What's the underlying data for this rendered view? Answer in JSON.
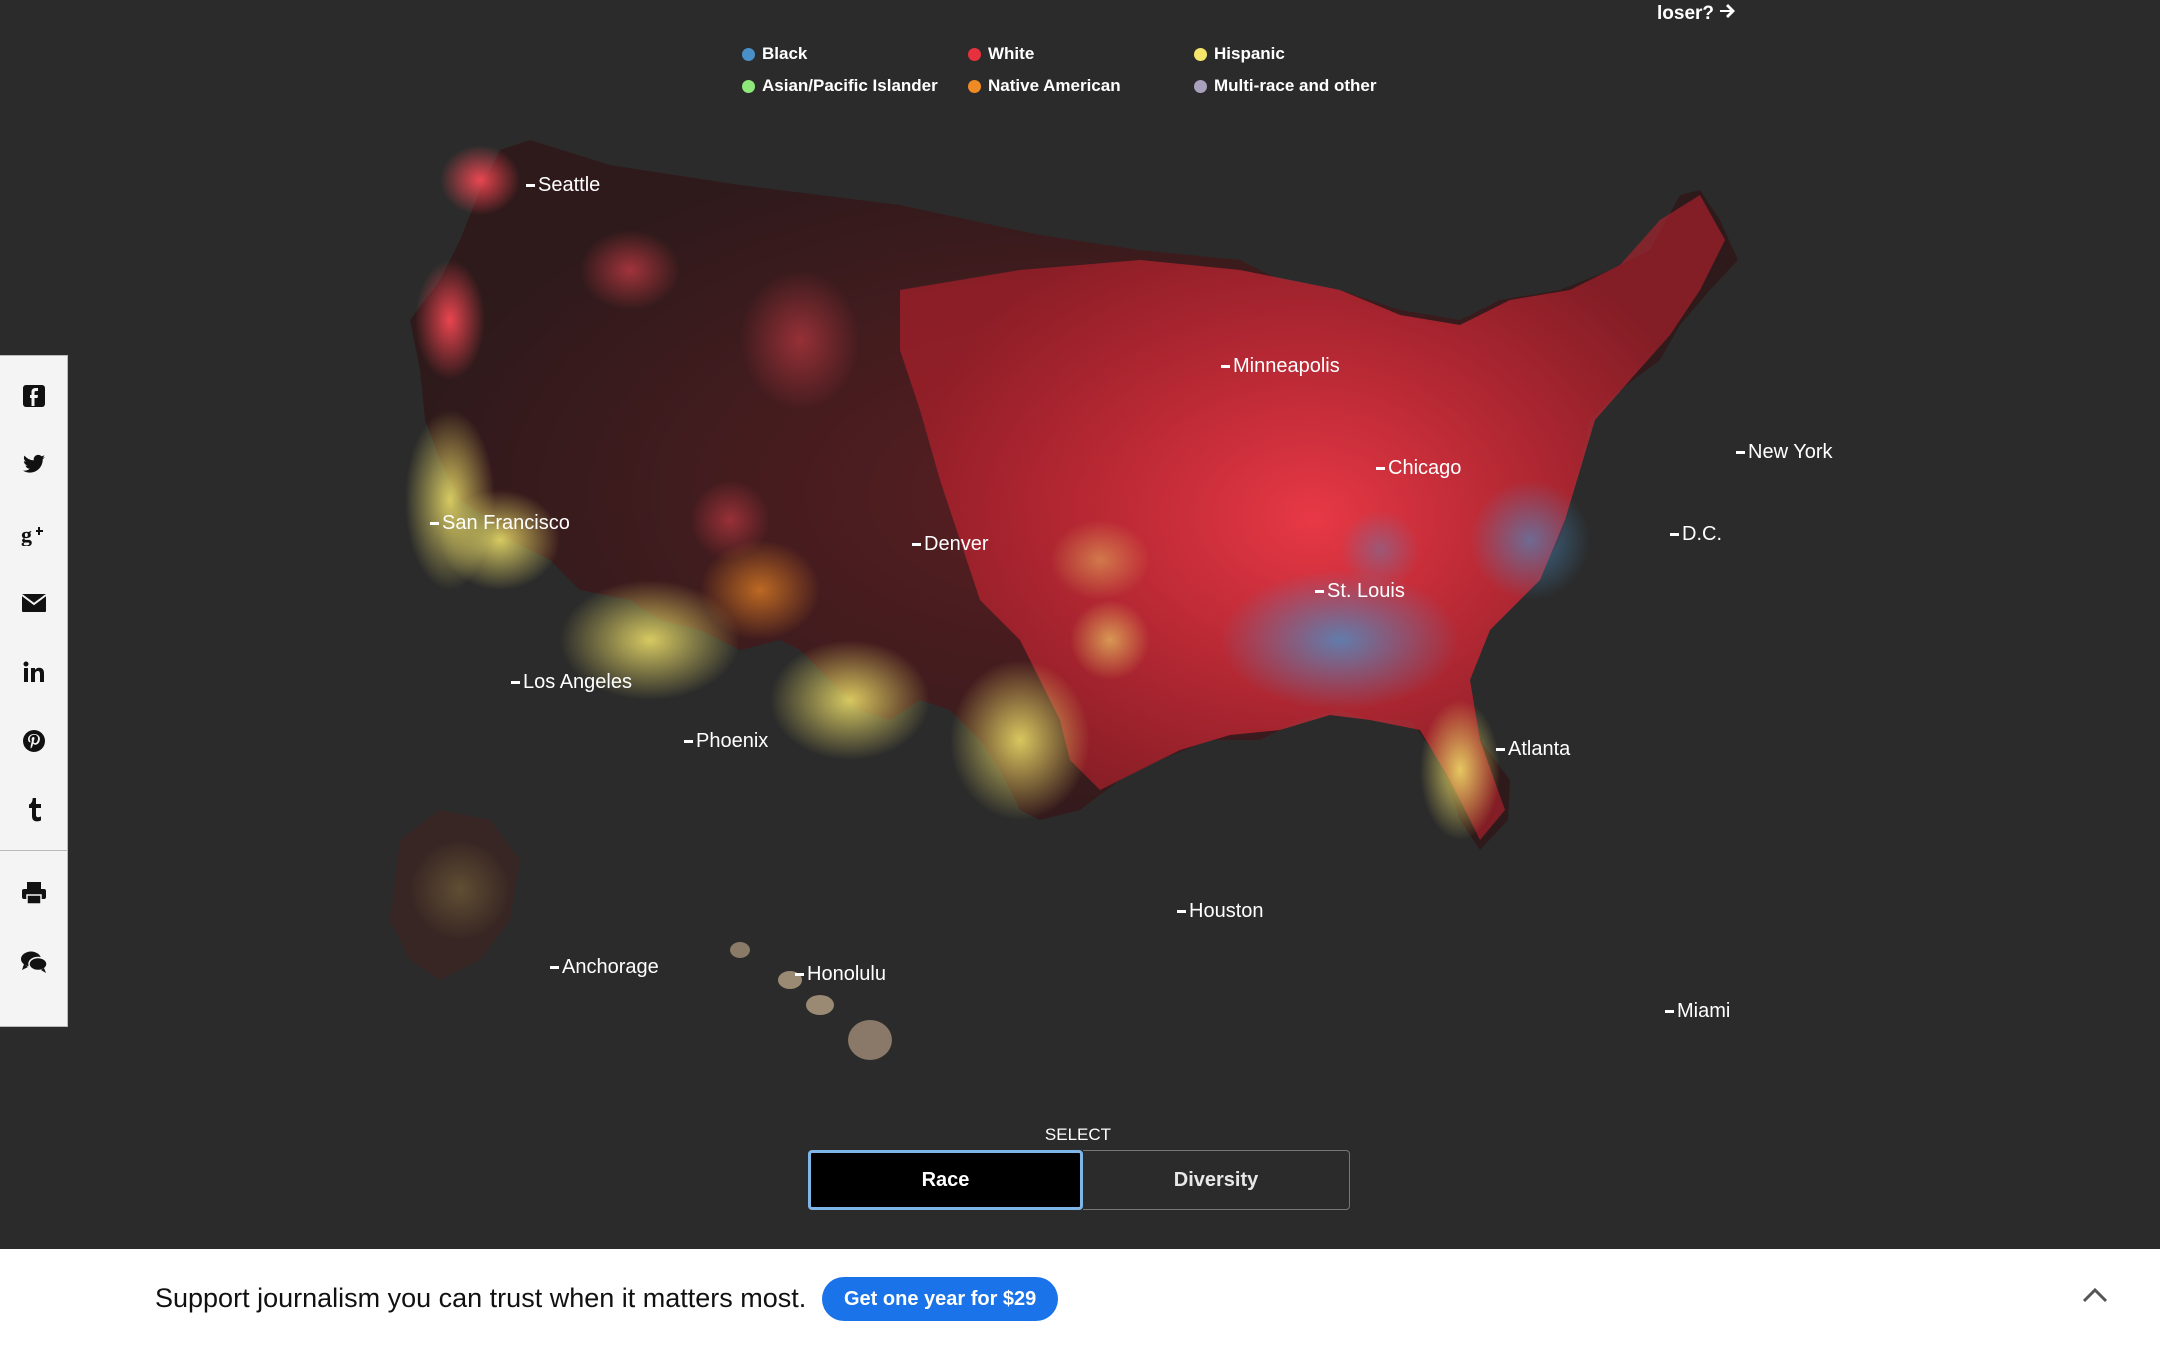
{
  "corner_link": {
    "text": "loser?",
    "icon": "arrow-right-icon"
  },
  "legend": [
    {
      "label": "Black",
      "color": "#4a90c8"
    },
    {
      "label": "White",
      "color": "#e8313f"
    },
    {
      "label": "Hispanic",
      "color": "#f5e56b"
    },
    {
      "label": "Asian/Pacific Islander",
      "color": "#8ee87a"
    },
    {
      "label": "Native American",
      "color": "#f08a24"
    },
    {
      "label": "Multi-race and other",
      "color": "#a8a0bc"
    }
  ],
  "map": {
    "cities": [
      "Seattle",
      "Minneapolis",
      "Chicago",
      "New York",
      "San Francisco",
      "Denver",
      "D.C.",
      "St. Louis",
      "Los Angeles",
      "Phoenix",
      "Atlanta",
      "Houston",
      "Anchorage",
      "Honolulu",
      "Miami"
    ]
  },
  "share": {
    "icons": [
      "facebook-icon",
      "twitter-icon",
      "google-plus-icon",
      "email-icon",
      "linkedin-icon",
      "pinterest-icon",
      "tumblr-icon",
      "print-icon",
      "comments-icon"
    ]
  },
  "select": {
    "label": "SELECT",
    "options": [
      "Race",
      "Diversity"
    ],
    "selected": "Race"
  },
  "banner": {
    "text": "Support journalism you can trust when it matters most.",
    "cta": "Get one year for $29"
  }
}
